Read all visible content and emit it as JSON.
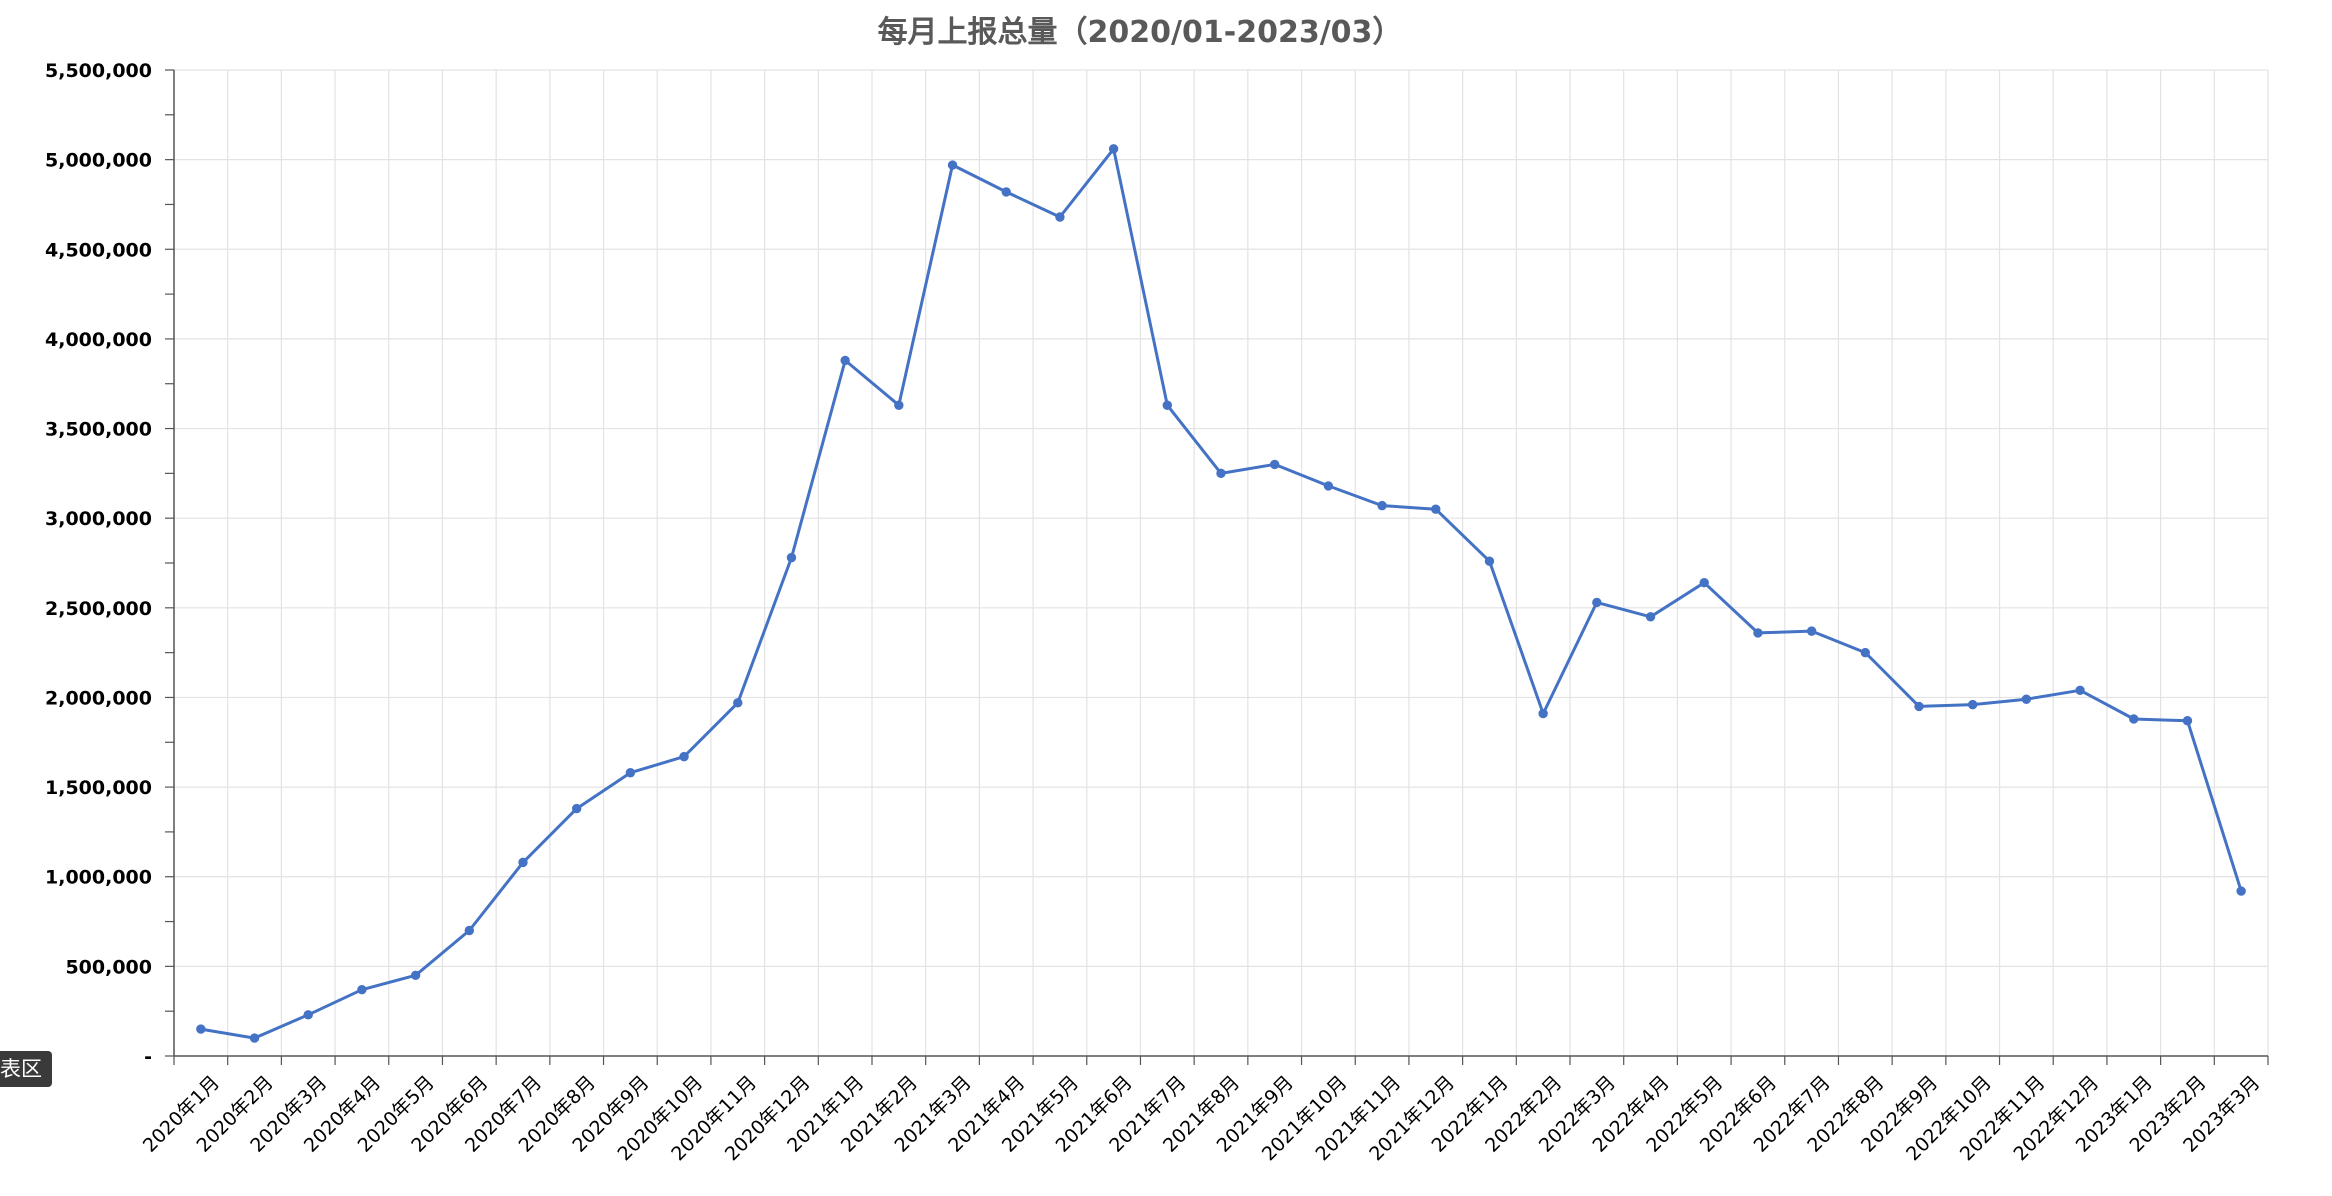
{
  "tooltip_label": "表区",
  "chart_data": {
    "type": "line",
    "title": "每月上报总量（2020/01-2023/03）",
    "xlabel": "",
    "ylabel": "",
    "ylim": [
      0,
      5500000
    ],
    "grid": true,
    "y_ticks": [
      {
        "value": 0,
        "label": "-"
      },
      {
        "value": 500000,
        "label": "500,000"
      },
      {
        "value": 1000000,
        "label": "1,000,000"
      },
      {
        "value": 1500000,
        "label": "1,500,000"
      },
      {
        "value": 2000000,
        "label": "2,000,000"
      },
      {
        "value": 2500000,
        "label": "2,500,000"
      },
      {
        "value": 3000000,
        "label": "3,000,000"
      },
      {
        "value": 3500000,
        "label": "3,500,000"
      },
      {
        "value": 4000000,
        "label": "4,000,000"
      },
      {
        "value": 4500000,
        "label": "4,500,000"
      },
      {
        "value": 5000000,
        "label": "5,000,000"
      },
      {
        "value": 5500000,
        "label": "5,500,000"
      }
    ],
    "categories": [
      "2020年1月",
      "2020年2月",
      "2020年3月",
      "2020年4月",
      "2020年5月",
      "2020年6月",
      "2020年7月",
      "2020年8月",
      "2020年9月",
      "2020年10月",
      "2020年11月",
      "2020年12月",
      "2021年1月",
      "2021年2月",
      "2021年3月",
      "2021年4月",
      "2021年5月",
      "2021年6月",
      "2021年7月",
      "2021年8月",
      "2021年9月",
      "2021年10月",
      "2021年11月",
      "2021年12月",
      "2022年1月",
      "2022年2月",
      "2022年3月",
      "2022年4月",
      "2022年5月",
      "2022年6月",
      "2022年7月",
      "2022年8月",
      "2022年9月",
      "2022年10月",
      "2022年11月",
      "2022年12月",
      "2023年1月",
      "2023年2月",
      "2023年3月"
    ],
    "series": [
      {
        "color": "#4472c4",
        "values": [
          150000,
          100000,
          230000,
          370000,
          450000,
          700000,
          1080000,
          1380000,
          1580000,
          1670000,
          1970000,
          2780000,
          3880000,
          3630000,
          4970000,
          4820000,
          4680000,
          5060000,
          3630000,
          3250000,
          3300000,
          3180000,
          3070000,
          3050000,
          2760000,
          1910000,
          2530000,
          2450000,
          2640000,
          2360000,
          2370000,
          2250000,
          1950000,
          1960000,
          1990000,
          2040000,
          1880000,
          1870000,
          920000
        ]
      }
    ]
  }
}
